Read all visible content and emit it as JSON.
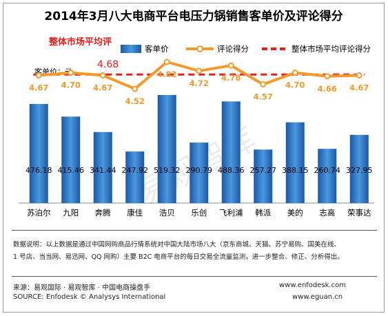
{
  "chart_data": {
    "type": "bar",
    "title": "2014年3月八大电商平台电压力锅销售客单价及评论得分",
    "categories": [
      "苏泊尔",
      "九阳",
      "奔腾",
      "康佳",
      "浩贝",
      "乐创",
      "飞利浦",
      "韩派",
      "美的",
      "志高",
      "荣事达"
    ],
    "series": [
      {
        "name": "客单价",
        "type": "bar",
        "values": [
          476.18,
          415.46,
          341.44,
          247.92,
          519.32,
          290.79,
          488.36,
          257.27,
          388.15,
          260.74,
          327.95
        ],
        "color": "#2a6fc0"
      },
      {
        "name": "评论得分",
        "type": "line",
        "values": [
          4.67,
          4.7,
          4.67,
          4.52,
          4.82,
          4.72,
          4.78,
          4.57,
          4.7,
          4.66,
          4.67
        ],
        "color": "#f39a2c"
      },
      {
        "name": "整体市场平均评论得分",
        "type": "line",
        "style": "dashed",
        "value": 4.68,
        "color": "#e0201b"
      }
    ],
    "ylabel": "客单价：元",
    "avg_label": "整体市场平均评",
    "avg_value": "4.68",
    "watermark": "易观智库"
  },
  "notes": {
    "line1": "数据说明：以上数据是通过中国网购商品行情系统对中国大陆市场八大（京东商城、天猫、苏宁易购、国美在线、",
    "line2": "1 号店、当当网、易迅网、QQ 网购）主要 B2C 电商平台的每日交易全流量监测，进一步整合、修正、分析得出。"
  },
  "source": {
    "cn": "来源：易观国际 · 易观智库 · 中国电商操盘手",
    "en": "SOURCE: Enfodesk © Analysys International",
    "url1": "www.enfodesk.com",
    "url2": "www.eguan.cn"
  }
}
